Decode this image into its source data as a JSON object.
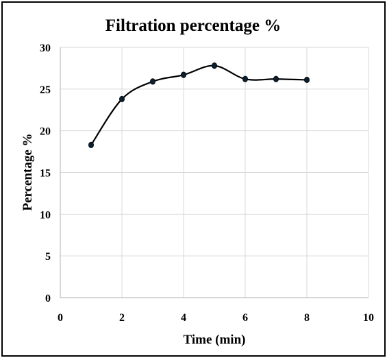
{
  "chart_data": {
    "type": "scatter",
    "title": "Filtration  percentage %",
    "xlabel": "Time (min)",
    "ylabel": "Percentage %",
    "xlim": [
      0,
      10
    ],
    "ylim": [
      0,
      30
    ],
    "x_ticks": [
      "0",
      "2",
      "4",
      "6",
      "8",
      "10"
    ],
    "y_ticks": [
      "0",
      "5",
      "10",
      "15",
      "20",
      "25",
      "30"
    ],
    "grid": true,
    "legend": "none",
    "series": [
      {
        "x": [
          1,
          2,
          3,
          4,
          5,
          6,
          7,
          8
        ],
        "values": [
          18.3,
          23.8,
          25.9,
          26.7,
          27.8,
          26.2,
          26.2,
          26.1
        ]
      }
    ],
    "colors": {
      "line": "#000000",
      "marker": "#0b1f33",
      "grid": "#d9d9d9"
    }
  }
}
